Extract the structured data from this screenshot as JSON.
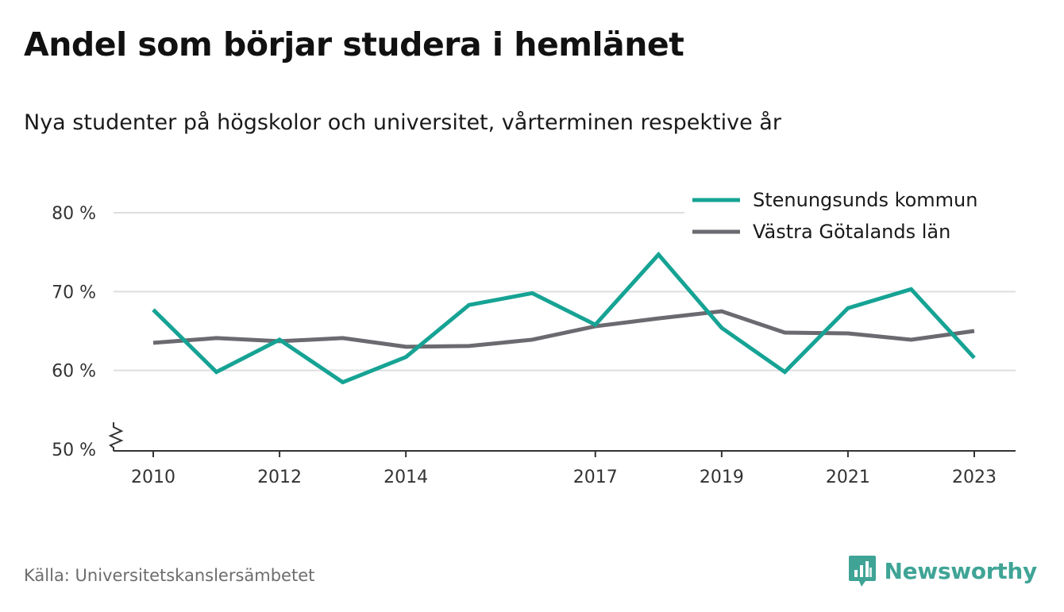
{
  "title": "Andel som börjar studera i hemlänet",
  "subtitle": "Nya studenter på högskolor och universitet, vårterminen respektive år",
  "source": "Källa: Universitetskanslersämbetet",
  "brand": {
    "name": "Newsworthy",
    "icon": "newsworthy-logo-icon",
    "color": "#3fa496"
  },
  "chart_data": {
    "type": "line",
    "x": [
      2010,
      2011,
      2012,
      2013,
      2014,
      2015,
      2016,
      2017,
      2018,
      2019,
      2020,
      2021,
      2022,
      2023
    ],
    "x_tick_labels": [
      "2010",
      "2012",
      "2014",
      "2017",
      "2019",
      "2021",
      "2023"
    ],
    "y_tick_labels": [
      "50 %",
      "60 %",
      "70 %",
      "80 %"
    ],
    "ylim": [
      50,
      80
    ],
    "y_axis_break": true,
    "grid": true,
    "legend_position": "top-right",
    "series": [
      {
        "name": "Stenungsunds kommun",
        "color": "#16a394",
        "values": [
          67.7,
          59.8,
          63.9,
          58.5,
          61.7,
          68.3,
          69.8,
          65.8,
          74.7,
          65.4,
          59.8,
          67.9,
          70.3,
          61.6
        ]
      },
      {
        "name": "Västra Götalands län",
        "color": "#6b6a70",
        "values": [
          63.5,
          64.1,
          63.7,
          64.1,
          63.0,
          63.1,
          63.9,
          65.6,
          66.6,
          67.5,
          64.8,
          64.7,
          63.9,
          65.0
        ]
      }
    ]
  }
}
